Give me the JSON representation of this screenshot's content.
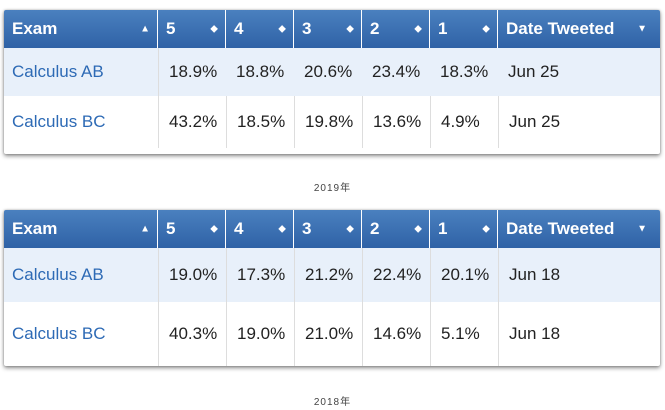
{
  "tables": [
    {
      "headers": {
        "exam": "Exam",
        "s5": "5",
        "s4": "4",
        "s3": "3",
        "s2": "2",
        "s1": "1",
        "date": "Date Tweeted"
      },
      "rows": [
        {
          "exam": "Calculus AB",
          "s5": "18.9%",
          "s4": "18.8%",
          "s3": "20.6%",
          "s2": "23.4%",
          "s1": "18.3%",
          "date": "Jun 25"
        },
        {
          "exam": "Calculus BC",
          "s5": "43.2%",
          "s4": "18.5%",
          "s3": "19.8%",
          "s2": "13.6%",
          "s1": "4.9%",
          "date": "Jun 25"
        }
      ],
      "caption": "2019年"
    },
    {
      "headers": {
        "exam": "Exam",
        "s5": "5",
        "s4": "4",
        "s3": "3",
        "s2": "2",
        "s1": "1",
        "date": "Date Tweeted"
      },
      "rows": [
        {
          "exam": "Calculus AB",
          "s5": "19.0%",
          "s4": "17.3%",
          "s3": "21.2%",
          "s2": "22.4%",
          "s1": "20.1%",
          "date": "Jun 18"
        },
        {
          "exam": "Calculus BC",
          "s5": "40.3%",
          "s4": "19.0%",
          "s3": "21.0%",
          "s2": "14.6%",
          "s1": "5.1%",
          "date": "Jun 18"
        }
      ],
      "caption": "2018年"
    }
  ],
  "icons": {
    "exam_sort": "sort-up-icon",
    "score_sort": "sort-both-icon",
    "date_sort": "sort-down-icon"
  },
  "colors": {
    "header_bg": "#3a6fb0",
    "link": "#2d6ab5",
    "alt_row": "#e8f0fa"
  }
}
